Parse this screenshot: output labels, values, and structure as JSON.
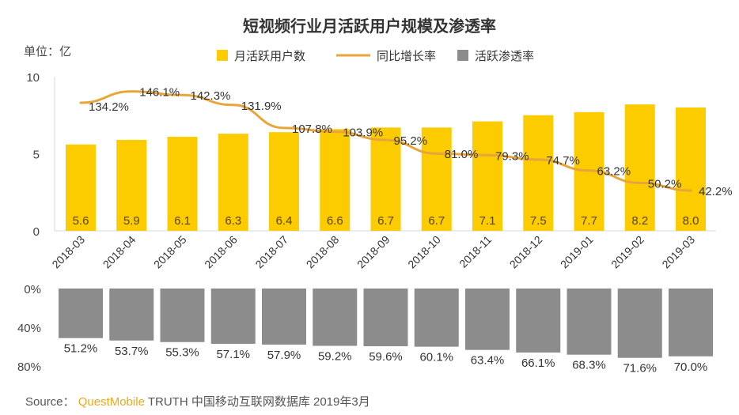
{
  "chart_data": [
    {
      "type": "bar+line",
      "title": "短视频行业月活跃用户规模及渗透率",
      "unit_label": "单位：亿",
      "categories": [
        "2018-03",
        "2018-04",
        "2018-05",
        "2018-06",
        "2018-07",
        "2018-08",
        "2018-09",
        "2018-10",
        "2018-11",
        "2018-12",
        "2019-01",
        "2019-02",
        "2019-03"
      ],
      "yticks": [
        "0",
        "5",
        "10"
      ],
      "ylim": [
        0,
        10
      ],
      "series": [
        {
          "name": "月活跃用户数",
          "type": "bar",
          "color": "#fccb00",
          "values": [
            5.6,
            5.9,
            6.1,
            6.3,
            6.4,
            6.6,
            6.7,
            6.7,
            7.1,
            7.5,
            7.7,
            8.2,
            8.0
          ],
          "labels": [
            "5.6",
            "5.9",
            "6.1",
            "6.3",
            "6.4",
            "6.6",
            "6.7",
            "6.7",
            "7.1",
            "7.5",
            "7.7",
            "8.2",
            "8.0"
          ]
        },
        {
          "name": "同比增长率",
          "type": "line",
          "color": "#e8a53a",
          "values": [
            134.2,
            146.1,
            142.3,
            131.9,
            107.8,
            103.9,
            95.2,
            81.0,
            79.3,
            74.7,
            63.2,
            50.2,
            42.2
          ],
          "labels": [
            "134.2%",
            "146.1%",
            "142.3%",
            "131.9%",
            "107.8%",
            "103.9%",
            "95.2%",
            "81.0%",
            "79.3%",
            "74.7%",
            "63.2%",
            "50.2%",
            "42.2%"
          ]
        }
      ],
      "legend": [
        "月活跃用户数",
        "同比增长率",
        "活跃渗透率"
      ],
      "legend_position": "top"
    },
    {
      "type": "bar",
      "orientation": "inverted",
      "yticks": [
        "0%",
        "40%",
        "80%"
      ],
      "ylim": [
        0,
        80
      ],
      "series": [
        {
          "name": "活跃渗透率",
          "color": "#8c8c8c",
          "values": [
            51.2,
            53.7,
            55.3,
            57.1,
            57.9,
            59.2,
            59.6,
            60.1,
            63.4,
            66.1,
            68.3,
            71.6,
            70.0
          ],
          "labels": [
            "51.2%",
            "53.7%",
            "55.3%",
            "57.1%",
            "57.9%",
            "59.2%",
            "59.6%",
            "60.1%",
            "63.4%",
            "66.1%",
            "68.3%",
            "71.6%",
            "70.0%"
          ]
        }
      ]
    }
  ],
  "source": {
    "label": "Source：",
    "brand": "QuestMobile",
    "rest": "TRUTH 中国移动互联网数据库 2019年3月"
  }
}
